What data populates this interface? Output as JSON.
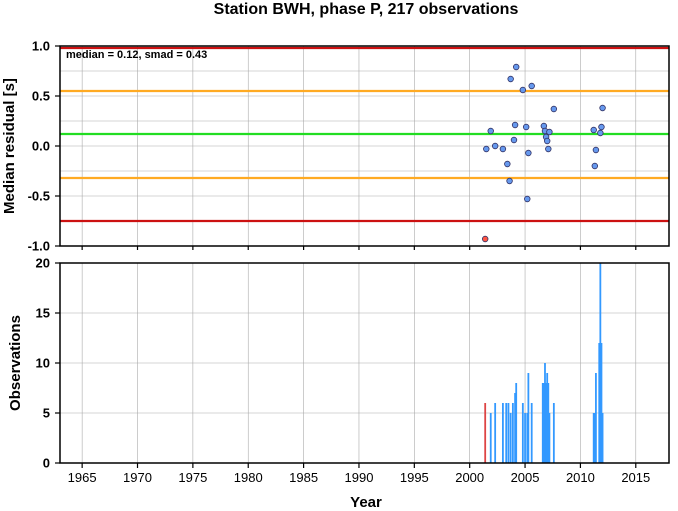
{
  "chart_data": [
    {
      "type": "scatter",
      "title": "Station BWH, phase P, 217 observations",
      "ylabel": "Median residual [s]",
      "annotation": "median = 0.12, smad = 0.43",
      "xlim": [
        1963,
        2018
      ],
      "ylim": [
        -1.0,
        1.0
      ],
      "x_ticks": [
        1965,
        1970,
        1975,
        1980,
        1985,
        1990,
        1995,
        2000,
        2005,
        2010,
        2015
      ],
      "y_ticks": [
        "-1.0",
        "-0.5",
        "0.0",
        "0.5",
        "1.0"
      ],
      "grid": true,
      "reference_lines": [
        {
          "y": 0.12,
          "color": "#22dd22"
        },
        {
          "y": 0.55,
          "color": "#ffaa22"
        },
        {
          "y": -0.32,
          "color": "#ffaa22"
        },
        {
          "y": 0.98,
          "color": "#cc1111"
        },
        {
          "y": -0.75,
          "color": "#cc1111"
        }
      ],
      "series": [
        {
          "color": "#6699ee",
          "points": [
            {
              "x": 2001.5,
              "y": -0.03
            },
            {
              "x": 2001.9,
              "y": 0.15
            },
            {
              "x": 2002.3,
              "y": 0.0
            },
            {
              "x": 2003.0,
              "y": -0.03
            },
            {
              "x": 2003.4,
              "y": -0.18
            },
            {
              "x": 2003.6,
              "y": -0.35
            },
            {
              "x": 2003.7,
              "y": 0.67
            },
            {
              "x": 2004.0,
              "y": 0.06
            },
            {
              "x": 2004.1,
              "y": 0.21
            },
            {
              "x": 2004.2,
              "y": 0.79
            },
            {
              "x": 2004.8,
              "y": 0.56
            },
            {
              "x": 2005.1,
              "y": 0.19
            },
            {
              "x": 2005.2,
              "y": -0.53
            },
            {
              "x": 2005.3,
              "y": -0.07
            },
            {
              "x": 2005.6,
              "y": 0.6
            },
            {
              "x": 2006.7,
              "y": 0.2
            },
            {
              "x": 2006.8,
              "y": 0.15
            },
            {
              "x": 2006.9,
              "y": 0.09
            },
            {
              "x": 2007.0,
              "y": 0.05
            },
            {
              "x": 2007.1,
              "y": -0.03
            },
            {
              "x": 2007.2,
              "y": 0.14
            },
            {
              "x": 2007.6,
              "y": 0.37
            },
            {
              "x": 2011.2,
              "y": 0.16
            },
            {
              "x": 2011.3,
              "y": -0.2
            },
            {
              "x": 2011.4,
              "y": -0.04
            },
            {
              "x": 2011.8,
              "y": 0.13
            },
            {
              "x": 2011.9,
              "y": 0.19
            },
            {
              "x": 2012.0,
              "y": 0.38
            }
          ]
        },
        {
          "color": "#ff5544",
          "points": [
            {
              "x": 2001.4,
              "y": -0.93
            }
          ]
        }
      ]
    },
    {
      "type": "bar",
      "ylabel": "Observations",
      "xlabel": "Year",
      "xlim": [
        1963,
        2018
      ],
      "ylim": [
        0,
        20
      ],
      "x_ticks": [
        1965,
        1970,
        1975,
        1980,
        1985,
        1990,
        1995,
        2000,
        2005,
        2010,
        2015
      ],
      "y_ticks": [
        "0",
        "5",
        "10",
        "15",
        "20"
      ],
      "grid": true,
      "series": [
        {
          "color": "#3399ff",
          "bars": [
            {
              "x": 2001.9,
              "y": 5
            },
            {
              "x": 2002.3,
              "y": 6
            },
            {
              "x": 2003.0,
              "y": 6
            },
            {
              "x": 2003.3,
              "y": 6
            },
            {
              "x": 2003.5,
              "y": 6
            },
            {
              "x": 2003.7,
              "y": 5
            },
            {
              "x": 2003.9,
              "y": 6
            },
            {
              "x": 2004.1,
              "y": 7
            },
            {
              "x": 2004.2,
              "y": 8
            },
            {
              "x": 2004.8,
              "y": 6
            },
            {
              "x": 2005.0,
              "y": 5
            },
            {
              "x": 2005.2,
              "y": 5
            },
            {
              "x": 2005.3,
              "y": 9
            },
            {
              "x": 2005.6,
              "y": 6
            },
            {
              "x": 2006.6,
              "y": 8
            },
            {
              "x": 2006.7,
              "y": 8
            },
            {
              "x": 2006.8,
              "y": 10
            },
            {
              "x": 2006.9,
              "y": 8
            },
            {
              "x": 2007.0,
              "y": 9
            },
            {
              "x": 2007.1,
              "y": 8
            },
            {
              "x": 2007.2,
              "y": 5
            },
            {
              "x": 2007.6,
              "y": 6
            },
            {
              "x": 2011.2,
              "y": 5
            },
            {
              "x": 2011.3,
              "y": 5
            },
            {
              "x": 2011.4,
              "y": 9
            },
            {
              "x": 2011.7,
              "y": 12
            },
            {
              "x": 2011.8,
              "y": 20
            },
            {
              "x": 2011.9,
              "y": 12
            },
            {
              "x": 2012.0,
              "y": 5
            }
          ]
        },
        {
          "color": "#dd4444",
          "bars": [
            {
              "x": 2001.4,
              "y": 6
            }
          ]
        }
      ]
    }
  ]
}
